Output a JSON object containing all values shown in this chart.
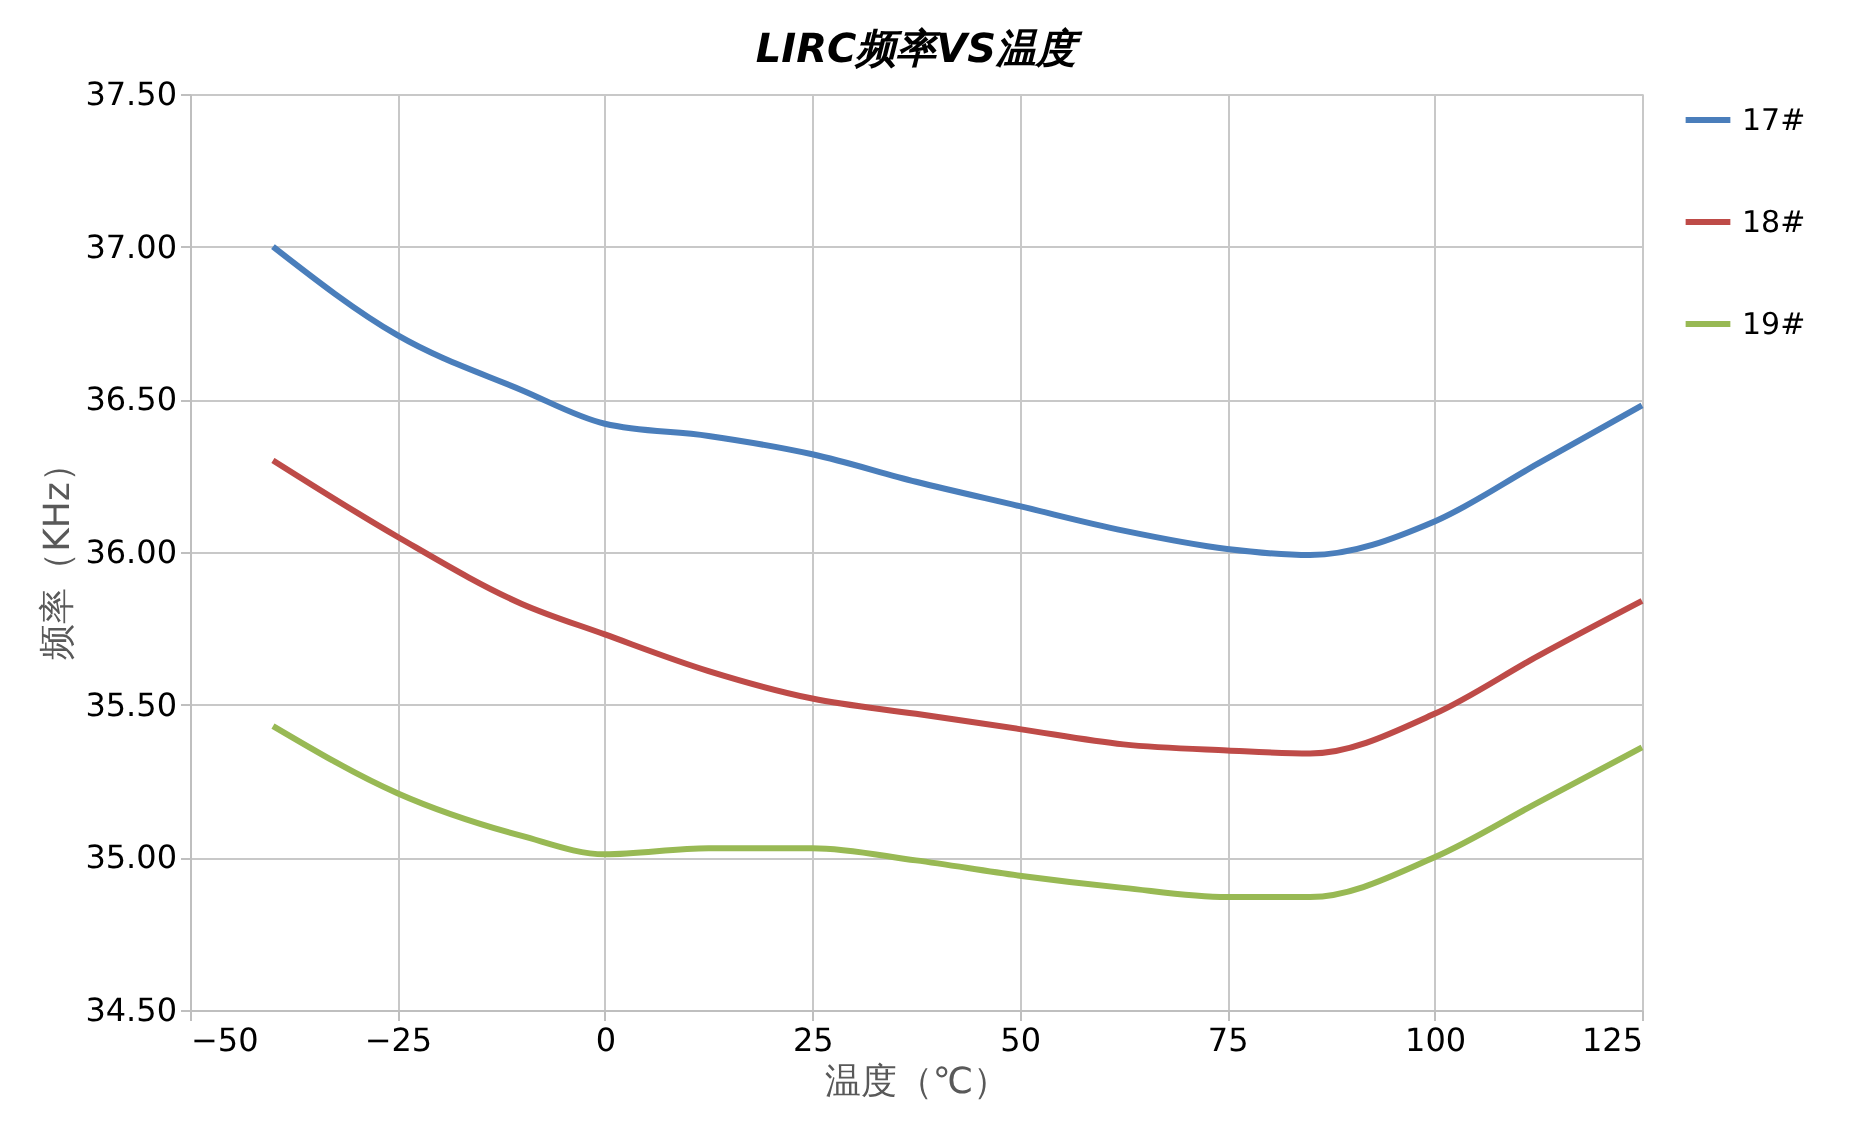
{
  "chart_data": {
    "type": "line",
    "title": "LIRC频率VS温度",
    "xlabel": "温度（℃）",
    "ylabel": "频率（KHz）",
    "x": [
      -40,
      -25,
      -10,
      0,
      12.5,
      25,
      37.5,
      50,
      62.5,
      75,
      85,
      100,
      112.5,
      125
    ],
    "series": [
      {
        "name": "17#",
        "color": "#4a7ebb",
        "values": [
          37.0,
          36.71,
          36.53,
          36.42,
          36.38,
          36.32,
          36.23,
          36.15,
          36.07,
          36.01,
          35.99,
          36.1,
          36.29,
          36.48
        ]
      },
      {
        "name": "18#",
        "color": "#be4b48",
        "values": [
          36.3,
          36.05,
          35.83,
          35.73,
          35.61,
          35.52,
          35.47,
          35.42,
          35.37,
          35.35,
          35.34,
          35.47,
          35.66,
          35.84
        ]
      },
      {
        "name": "19#",
        "color": "#98b954",
        "values": [
          35.43,
          35.21,
          35.07,
          35.01,
          35.03,
          35.03,
          34.99,
          34.94,
          34.9,
          34.87,
          34.87,
          35.0,
          35.18,
          35.36
        ]
      }
    ],
    "xlim": [
      -50,
      125
    ],
    "xticks": [
      -50,
      -25,
      0,
      25,
      50,
      75,
      100,
      125
    ],
    "ylim": [
      34.5,
      37.5
    ],
    "yticks": [
      {
        "value": 34.5,
        "label": "34.50"
      },
      {
        "value": 35,
        "label": "35.00"
      },
      {
        "value": 35.5,
        "label": "35.50"
      },
      {
        "value": 36,
        "label": "36.00"
      },
      {
        "value": 36.5,
        "label": "36.50"
      },
      {
        "value": 37,
        "label": "37.00"
      },
      {
        "value": 37.5,
        "label": "37.50"
      }
    ],
    "grid": true,
    "legend": "right",
    "marker": "none",
    "line_style": "solid"
  }
}
